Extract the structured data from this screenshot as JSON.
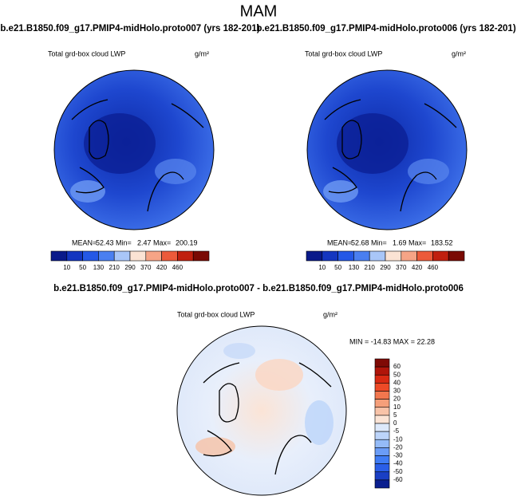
{
  "title": "MAM",
  "panels": [
    {
      "title": "b.e21.B1850.f09_g17.PMIP4-midHolo.proto007 (yrs 182-201)",
      "subtitle": "Total grd-box cloud LWP",
      "units": "g/m²",
      "stats": [
        "MEAN=",
        "52.43",
        "Min=",
        "2.47",
        "Max=",
        "200.19"
      ]
    },
    {
      "title": "b.e21.B1850.f09_g17.PMIP4-midHolo.proto006 (yrs 182-201)",
      "subtitle": "Total grd-box cloud LWP",
      "units": "g/m²",
      "stats": [
        "MEAN=",
        "52.68",
        "Min=",
        "1.69",
        "Max=",
        "183.52"
      ]
    }
  ],
  "abs_colorbar": {
    "labels": [
      10,
      50,
      130,
      210,
      290,
      370,
      420,
      460
    ],
    "colors": [
      "#0a1a8a",
      "#1436c0",
      "#2458e6",
      "#4a7ff0",
      "#a9c6f8",
      "#fbe3d4",
      "#f6a486",
      "#ec5a3a",
      "#c0200f",
      "#7a0a04"
    ]
  },
  "diff_panel": {
    "title": "b.e21.B1850.f09_g17.PMIP4-midHolo.proto007 - b.e21.B1850.f09_g17.PMIP4-midHolo.proto006",
    "subtitle": "Total grd-box cloud LWP",
    "units": "g/m²",
    "stats": "MIN = -14.83 MAX =  22.28"
  },
  "diff_colorbar": {
    "labels": [
      60,
      50,
      40,
      30,
      20,
      10,
      5,
      0,
      -5,
      -10,
      -20,
      -30,
      -40,
      -50,
      -60
    ],
    "colors": [
      "#7f0a05",
      "#b0150a",
      "#d92a13",
      "#ee4a27",
      "#f2774e",
      "#f59f7a",
      "#f8c3a8",
      "#fbe4d6",
      "#dde9fb",
      "#bcd4fa",
      "#94bbf8",
      "#6a9cf7",
      "#3f7cf5",
      "#2a5ee8",
      "#1a3fc4",
      "#0a1f8f"
    ]
  }
}
